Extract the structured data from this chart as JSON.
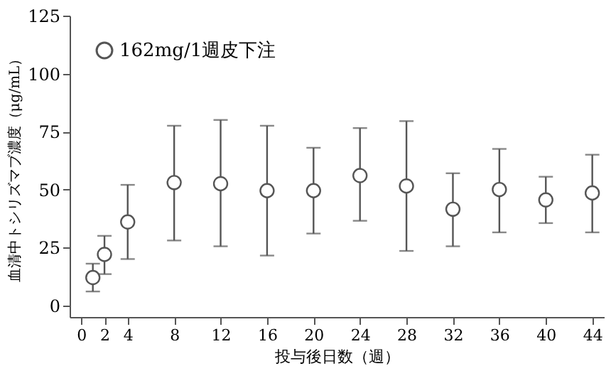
{
  "chart_data": {
    "type": "scatter",
    "xlabel": "投与後日数（週）",
    "ylabel": "血清中トシリズマブ濃度（μg/mL）",
    "x": [
      1,
      2,
      4,
      8,
      12,
      16,
      20,
      24,
      28,
      32,
      36,
      40,
      44
    ],
    "series": [
      {
        "name": "162mg/1週皮下注",
        "color": "#555555",
        "values": [
          12,
          22,
          36,
          53,
          52.5,
          49.5,
          49.5,
          56,
          51.5,
          41.5,
          50,
          45.5,
          48.5
        ],
        "errors": [
          [
            6,
            18
          ],
          [
            13.5,
            30
          ],
          [
            20,
            52
          ],
          [
            28,
            77.5
          ],
          [
            25.5,
            80
          ],
          [
            21.5,
            77.5
          ],
          [
            31,
            68
          ],
          [
            36.5,
            76.5
          ],
          [
            23.5,
            79.5
          ],
          [
            25.5,
            57
          ],
          [
            31.5,
            67.5
          ],
          [
            35.5,
            55.5
          ],
          [
            31.5,
            65
          ]
        ]
      }
    ],
    "xlim": [
      -1,
      45
    ],
    "xticks": [
      0,
      2,
      4,
      8,
      12,
      16,
      20,
      24,
      28,
      32,
      36,
      40,
      44
    ],
    "ylim": [
      -5,
      125
    ],
    "yticks": [
      0,
      25,
      50,
      75,
      100,
      125
    ],
    "marker": "circle",
    "legend": "top left",
    "grid": false
  }
}
